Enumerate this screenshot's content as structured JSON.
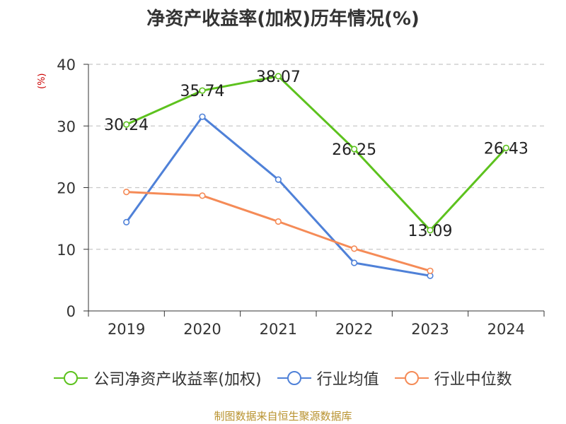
{
  "chart_data": {
    "type": "line",
    "title": "净资产收益率(加权)历年情况(%)",
    "ylabel": "(%)",
    "xlabel": "",
    "categories": [
      "2019",
      "2020",
      "2021",
      "2022",
      "2023",
      "2024"
    ],
    "ylim": [
      0,
      40
    ],
    "yticks": [
      0,
      10,
      20,
      30,
      40
    ],
    "grid": true,
    "legend_position": "bottom",
    "series": [
      {
        "name": "公司净资产收益率(加权)",
        "color": "#5dc21e",
        "values": [
          30.24,
          35.74,
          38.07,
          26.25,
          13.09,
          26.43
        ],
        "labels": [
          "30.24",
          "35.74",
          "38.07",
          "26.25",
          "13.09",
          "26.43"
        ]
      },
      {
        "name": "行业均值",
        "color": "#4f81d8",
        "values": [
          14.4,
          31.5,
          21.3,
          7.8,
          5.7,
          null
        ]
      },
      {
        "name": "行业中位数",
        "color": "#f58b57",
        "values": [
          19.3,
          18.7,
          14.5,
          10.1,
          6.5,
          null
        ]
      }
    ]
  },
  "source": "制图数据来自恒生聚源数据库"
}
